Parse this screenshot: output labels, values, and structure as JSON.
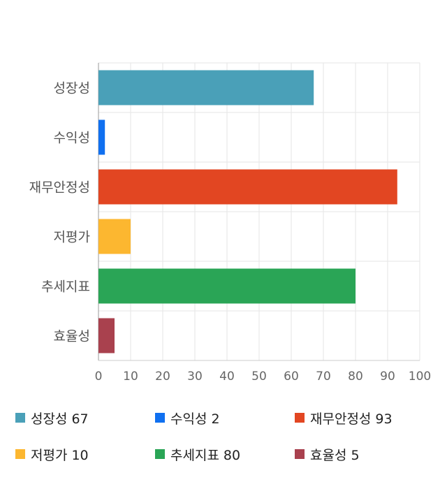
{
  "chart_data": {
    "type": "bar",
    "orientation": "horizontal",
    "categories": [
      "성장성",
      "수익성",
      "재무안정성",
      "저평가",
      "추세지표",
      "효율성"
    ],
    "values": [
      67,
      2,
      93,
      10,
      80,
      5
    ],
    "colors": [
      "#4aa0b8",
      "#1070f0",
      "#e24622",
      "#fcb730",
      "#2aa556",
      "#a9414e"
    ],
    "xlim": [
      0,
      100
    ],
    "x_ticks": [
      "0",
      "10",
      "20",
      "30",
      "40",
      "50",
      "60",
      "70",
      "80",
      "90",
      "100"
    ],
    "grid": true,
    "legend_position": "bottom"
  },
  "legend": [
    {
      "label": "성장성",
      "value": "67",
      "color": "#4aa0b8"
    },
    {
      "label": "수익성",
      "value": "2",
      "color": "#1070f0"
    },
    {
      "label": "재무안정성",
      "value": "93",
      "color": "#e24622"
    },
    {
      "label": "저평가",
      "value": "10",
      "color": "#fcb730"
    },
    {
      "label": "추세지표",
      "value": "80",
      "color": "#2aa556"
    },
    {
      "label": "효율성",
      "value": "5",
      "color": "#a9414e"
    }
  ]
}
